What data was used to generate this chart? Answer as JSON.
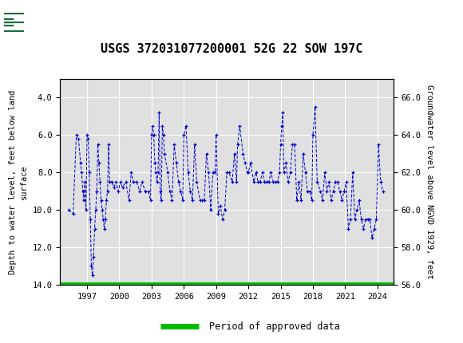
{
  "title": "USGS 372031077200001 52G 22 SOW 197C",
  "ylabel_left": "Depth to water level, feet below land\nsurface",
  "ylabel_right": "Groundwater level above NGVD 1929, feet",
  "xlim": [
    1994.5,
    2025.5
  ],
  "ylim_left": [
    14.0,
    3.0
  ],
  "ylim_right": [
    56.0,
    67.0
  ],
  "yticks_left": [
    4.0,
    6.0,
    8.0,
    10.0,
    12.0,
    14.0
  ],
  "yticks_right": [
    56.0,
    58.0,
    60.0,
    62.0,
    64.0,
    66.0
  ],
  "xticks": [
    1997,
    2000,
    2003,
    2006,
    2009,
    2012,
    2015,
    2018,
    2021,
    2024
  ],
  "header_color": "#1a6b3c",
  "line_color": "#0000cc",
  "approved_data_color": "#00bb00",
  "background_color": "#ffffff",
  "plot_bg_color": "#e0e0e0",
  "grid_color": "#ffffff",
  "data_x": [
    1995.3,
    1995.7,
    1996.0,
    1996.2,
    1996.4,
    1996.5,
    1996.6,
    1996.7,
    1996.8,
    1996.9,
    1997.0,
    1997.1,
    1997.2,
    1997.3,
    1997.4,
    1997.5,
    1997.6,
    1997.7,
    1997.8,
    1997.9,
    1998.0,
    1998.1,
    1998.2,
    1998.3,
    1998.4,
    1998.5,
    1998.6,
    1998.7,
    1998.8,
    1998.9,
    1999.0,
    1999.1,
    1999.3,
    1999.5,
    1999.7,
    1999.9,
    2000.1,
    2000.3,
    2000.6,
    2000.9,
    2001.1,
    2001.3,
    2001.6,
    2001.9,
    2002.1,
    2002.4,
    2002.7,
    2002.9,
    2003.0,
    2003.1,
    2003.2,
    2003.3,
    2003.4,
    2003.5,
    2003.6,
    2003.7,
    2003.8,
    2003.9,
    2004.0,
    2004.1,
    2004.2,
    2004.5,
    2004.7,
    2004.9,
    2005.1,
    2005.3,
    2005.5,
    2005.7,
    2005.9,
    2006.0,
    2006.2,
    2006.4,
    2006.6,
    2006.8,
    2007.0,
    2007.2,
    2007.5,
    2007.7,
    2007.9,
    2008.1,
    2008.3,
    2008.5,
    2008.7,
    2008.9,
    2009.0,
    2009.2,
    2009.4,
    2009.6,
    2009.8,
    2010.0,
    2010.2,
    2010.5,
    2010.7,
    2010.9,
    2011.0,
    2011.2,
    2011.5,
    2011.7,
    2011.9,
    2012.0,
    2012.2,
    2012.5,
    2012.7,
    2012.9,
    2013.1,
    2013.3,
    2013.5,
    2013.7,
    2013.9,
    2014.1,
    2014.3,
    2014.5,
    2014.7,
    2014.9,
    2015.0,
    2015.1,
    2015.2,
    2015.3,
    2015.5,
    2015.7,
    2015.9,
    2016.1,
    2016.3,
    2016.5,
    2016.7,
    2016.9,
    2017.1,
    2017.3,
    2017.5,
    2017.7,
    2017.9,
    2018.0,
    2018.2,
    2018.4,
    2018.7,
    2018.9,
    2019.1,
    2019.3,
    2019.5,
    2019.7,
    2019.9,
    2020.1,
    2020.3,
    2020.5,
    2020.7,
    2020.9,
    2021.1,
    2021.3,
    2021.5,
    2021.7,
    2021.9,
    2022.1,
    2022.3,
    2022.5,
    2022.7,
    2022.9,
    2023.1,
    2023.3,
    2023.5,
    2023.7,
    2023.9,
    2024.1,
    2024.3,
    2024.5
  ],
  "data_y": [
    10.0,
    10.2,
    6.0,
    6.2,
    7.5,
    8.0,
    9.0,
    9.5,
    8.5,
    10.0,
    6.0,
    6.2,
    8.0,
    10.5,
    13.0,
    13.5,
    12.5,
    11.0,
    10.0,
    9.0,
    6.5,
    7.5,
    8.5,
    9.5,
    10.0,
    10.5,
    11.0,
    10.5,
    9.5,
    9.0,
    6.5,
    8.5,
    8.5,
    8.8,
    8.5,
    9.0,
    8.5,
    8.8,
    8.5,
    9.5,
    8.0,
    8.5,
    8.5,
    9.0,
    8.5,
    9.0,
    9.0,
    9.5,
    6.0,
    5.5,
    6.0,
    7.5,
    8.0,
    8.5,
    8.0,
    4.8,
    9.0,
    9.5,
    5.5,
    6.0,
    7.0,
    8.0,
    9.0,
    9.5,
    6.5,
    7.5,
    8.5,
    9.0,
    9.5,
    6.0,
    5.5,
    8.0,
    9.0,
    9.5,
    6.5,
    8.5,
    9.5,
    9.5,
    9.5,
    7.0,
    8.0,
    10.0,
    8.0,
    8.0,
    6.0,
    10.2,
    9.8,
    10.5,
    10.0,
    8.0,
    8.0,
    8.5,
    7.0,
    8.5,
    6.5,
    5.5,
    7.0,
    7.5,
    8.0,
    8.0,
    7.5,
    8.5,
    8.0,
    8.5,
    8.5,
    8.0,
    8.5,
    8.5,
    8.5,
    8.0,
    8.5,
    8.5,
    8.5,
    8.0,
    6.5,
    5.5,
    4.8,
    8.0,
    7.5,
    8.5,
    8.0,
    6.5,
    6.5,
    9.5,
    8.5,
    9.5,
    7.0,
    8.0,
    9.0,
    9.0,
    9.5,
    6.0,
    4.5,
    8.5,
    9.0,
    9.5,
    8.0,
    9.0,
    8.5,
    9.5,
    9.0,
    8.5,
    8.5,
    9.0,
    9.5,
    9.0,
    8.5,
    11.0,
    10.5,
    8.0,
    10.5,
    10.0,
    9.5,
    10.5,
    11.0,
    10.5,
    10.5,
    10.5,
    11.5,
    11.0,
    10.5,
    6.5,
    8.5,
    9.0
  ]
}
